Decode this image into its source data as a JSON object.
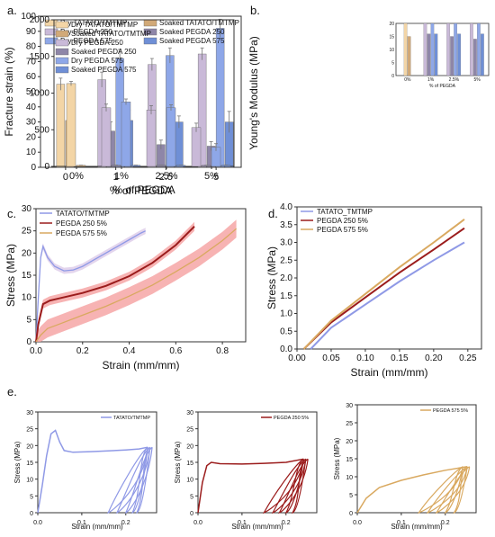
{
  "colors": {
    "dry_tatato": "#f3d5a6",
    "soaked_tatato": "#d1a978",
    "dry_p250": "#c9b9d8",
    "soaked_p250": "#8e86a8",
    "dry_p575": "#8ea7e8",
    "soaked_p575": "#6f8fd6",
    "tatato_line": "#8f99e6",
    "p250_line": "#9b1c1c",
    "p575_line": "#d9a960",
    "band_tatato": "#dccbe9",
    "band_p250": "#f5a0a0",
    "band_p575": "#f5c9a0"
  },
  "chart_data": [
    {
      "id": "a",
      "panel_label": "a.",
      "type": "bar",
      "xlabel": "% of PEGDA",
      "ylabel": "Fracture strain (%)",
      "categories": [
        "0",
        "1",
        "2.5",
        "5"
      ],
      "ylim": [
        0,
        100
      ],
      "yticks": [
        "0",
        "10",
        "20",
        "30",
        "40",
        "50",
        "60",
        "70",
        "80",
        "90",
        "100"
      ],
      "legend_position": "top-right",
      "series": [
        {
          "name": "Dry TATATO/TMTMP",
          "color_key": "dry_tatato",
          "values": [
            55,
            null,
            null,
            null
          ],
          "errors": [
            4,
            null,
            null,
            null
          ]
        },
        {
          "name": "Soaked TATATO/TMTMP",
          "color_key": "soaked_tatato",
          "values": [
            31,
            null,
            null,
            null
          ],
          "errors": [
            4,
            null,
            null,
            null
          ]
        },
        {
          "name": "Dry PEGDA 250",
          "color_key": "dry_p250",
          "values": [
            null,
            58,
            68,
            75
          ],
          "errors": [
            null,
            5,
            4,
            4
          ]
        },
        {
          "name": "Soaked PEGDA 250",
          "color_key": "soaked_p250",
          "values": [
            null,
            24,
            15,
            14
          ],
          "errors": [
            null,
            6,
            3,
            3
          ]
        },
        {
          "name": "Dry PEGDA 575",
          "color_key": "dry_p575",
          "values": [
            null,
            72,
            74,
            92
          ],
          "errors": [
            null,
            6,
            5,
            6
          ]
        },
        {
          "name": "Soaked PEGDA 575",
          "color_key": "soaked_p575",
          "values": [
            null,
            31,
            30,
            30
          ],
          "errors": [
            null,
            7,
            4,
            7
          ]
        }
      ]
    },
    {
      "id": "b",
      "panel_label": "b.",
      "type": "bar",
      "xlabel": "% of PEGDA",
      "ylabel": "Young's Modulus (MPa)",
      "categories": [
        "0%",
        "1%",
        "2.5%",
        "5%"
      ],
      "ylim": [
        0,
        2000
      ],
      "yticks": [
        "0",
        "500",
        "1000",
        "1500",
        "2000"
      ],
      "legend_position": "top-left",
      "series": [
        {
          "name": "Dry TATATO/TMTMP",
          "color_key": "dry_tatato",
          "values": [
            1130,
            null,
            null,
            null
          ],
          "errors": [
            30,
            null,
            null,
            null
          ]
        },
        {
          "name": "Soaked TATATO/TMTMP",
          "color_key": "soaked_tatato",
          "values": [
            15,
            null,
            null,
            null
          ],
          "errors": [
            2,
            null,
            null,
            null
          ]
        },
        {
          "name": "Dry PEGDA 250",
          "color_key": "dry_p250",
          "values": [
            null,
            800,
            770,
            530
          ],
          "errors": [
            null,
            50,
            60,
            60
          ]
        },
        {
          "name": "Soaked PEGDA 250",
          "color_key": "soaked_p250",
          "values": [
            null,
            16,
            15,
            14
          ],
          "errors": [
            null,
            2,
            2,
            2
          ]
        },
        {
          "name": "Dry PEGDA 575",
          "color_key": "dry_p575",
          "values": [
            null,
            880,
            800,
            260
          ],
          "errors": [
            null,
            40,
            40,
            50
          ]
        },
        {
          "name": "Soaked PEGDA 575",
          "color_key": "soaked_p575",
          "values": [
            null,
            16,
            16,
            16
          ],
          "errors": [
            null,
            2,
            2,
            2
          ]
        }
      ],
      "inset": {
        "xlabel": "% of PEGDA",
        "categories": [
          "0%",
          "1%",
          "2.5%",
          "5%"
        ],
        "ylim": [
          0,
          20
        ],
        "yticks": [
          "0",
          "5",
          "10",
          "15",
          "20"
        ]
      }
    },
    {
      "id": "c",
      "panel_label": "c.",
      "type": "line",
      "xlabel": "Strain (mm/mm)",
      "ylabel": "Stress (MPa)",
      "xlim": [
        0,
        0.9
      ],
      "ylim": [
        0,
        30
      ],
      "xticks": [
        "0.0",
        "0.2",
        "0.4",
        "0.6",
        "0.8"
      ],
      "yticks": [
        "0",
        "5",
        "10",
        "15",
        "20",
        "25",
        "30"
      ],
      "legend_position": "top-left",
      "series": [
        {
          "name": "TATATO/TMTMP",
          "color_key": "tatato_line",
          "band_key": "band_tatato",
          "band": 0.7,
          "x": [
            0,
            0.01,
            0.02,
            0.03,
            0.05,
            0.08,
            0.12,
            0.16,
            0.2,
            0.25,
            0.3,
            0.35,
            0.4,
            0.45,
            0.47
          ],
          "y": [
            0,
            10,
            19,
            21.5,
            19,
            17,
            16,
            16.2,
            17,
            18.5,
            20,
            21.5,
            23,
            24.5,
            25
          ]
        },
        {
          "name": "PEGDA 250 5%",
          "color_key": "p250_line",
          "band_key": "band_p250",
          "band": 1.0,
          "x": [
            0,
            0.01,
            0.03,
            0.06,
            0.1,
            0.15,
            0.2,
            0.3,
            0.4,
            0.5,
            0.6,
            0.68
          ],
          "y": [
            0,
            4,
            8.5,
            9.3,
            9.8,
            10.4,
            11,
            12.6,
            14.8,
            17.8,
            21.8,
            26
          ]
        },
        {
          "name": "PEGDA 575 5%",
          "color_key": "p575_line",
          "band_key": "band_p250",
          "band": 2.0,
          "x": [
            0,
            0.02,
            0.05,
            0.1,
            0.2,
            0.3,
            0.4,
            0.5,
            0.6,
            0.7,
            0.8,
            0.86
          ],
          "y": [
            0,
            1.5,
            3,
            4,
            6,
            8,
            10.3,
            12.8,
            15.8,
            19,
            22.8,
            25.5
          ]
        }
      ]
    },
    {
      "id": "d",
      "panel_label": "d.",
      "type": "line",
      "xlabel": "Strain (mm/mm)",
      "ylabel": "Stress (MPa)",
      "xlim": [
        0,
        0.27
      ],
      "ylim": [
        0,
        4.0
      ],
      "xticks": [
        "0.00",
        "0.05",
        "0.10",
        "0.15",
        "0.20",
        "0.25"
      ],
      "yticks": [
        "0.0",
        "0.5",
        "1.0",
        "1.5",
        "2.0",
        "2.5",
        "3.0",
        "3.5",
        "4.0"
      ],
      "legend_position": "top-left",
      "series": [
        {
          "name": "TATATO_TMTMP",
          "color_key": "tatato_line",
          "x": [
            0.02,
            0.05,
            0.1,
            0.15,
            0.2,
            0.245
          ],
          "y": [
            0,
            0.6,
            1.25,
            1.9,
            2.5,
            3.0
          ]
        },
        {
          "name": "PEGDA 250 5%",
          "color_key": "p250_line",
          "x": [
            0.01,
            0.05,
            0.1,
            0.15,
            0.2,
            0.245
          ],
          "y": [
            0,
            0.75,
            1.45,
            2.15,
            2.8,
            3.4
          ]
        },
        {
          "name": "PEGDA 575 5%",
          "color_key": "p575_line",
          "x": [
            0.01,
            0.05,
            0.1,
            0.15,
            0.2,
            0.245
          ],
          "y": [
            0,
            0.8,
            1.55,
            2.3,
            3.0,
            3.65
          ]
        }
      ]
    },
    {
      "id": "e1",
      "panel_label": "e.",
      "type": "line",
      "legend": "TATATO/TMTMP",
      "color_key": "tatato_line",
      "xlabel": "Strain (mm/mm)",
      "ylabel": "Stress (MPa)",
      "xlim": [
        0,
        0.27
      ],
      "ylim": [
        0,
        30
      ],
      "xticks": [
        "0.0",
        "0.1",
        "0.2"
      ],
      "yticks": [
        "0",
        "5",
        "10",
        "15",
        "20",
        "25",
        "30"
      ],
      "loading": {
        "x": [
          0,
          0.01,
          0.02,
          0.03,
          0.04,
          0.05,
          0.06,
          0.08,
          0.12,
          0.16,
          0.2,
          0.23,
          0.25
        ],
        "y": [
          0,
          8,
          17,
          23.5,
          24.5,
          21,
          18.5,
          18,
          18.2,
          18.4,
          18.7,
          19,
          19.5
        ]
      },
      "unload_starts": [
        0.25,
        0.255,
        0.26
      ],
      "unload_ends": [
        0.16,
        0.18,
        0.2,
        0.215,
        0.225
      ]
    },
    {
      "id": "e2",
      "panel_label": "",
      "type": "line",
      "legend": "PEGDA 250 5%",
      "color_key": "p250_line",
      "xlabel": "Strain (mm/mm)",
      "ylabel": "Stress (MPa)",
      "xlim": [
        0,
        0.27
      ],
      "ylim": [
        0,
        30
      ],
      "xticks": [
        "0.0",
        "0.1",
        "0.2"
      ],
      "yticks": [
        "0",
        "5",
        "10",
        "15",
        "20",
        "25",
        "30"
      ],
      "loading": {
        "x": [
          0,
          0.01,
          0.02,
          0.03,
          0.05,
          0.1,
          0.15,
          0.2,
          0.24
        ],
        "y": [
          0,
          9,
          14,
          15,
          14.6,
          14.5,
          14.7,
          15,
          16
        ]
      },
      "unload_starts": [
        0.24,
        0.245,
        0.25
      ],
      "unload_ends": [
        0.15,
        0.17,
        0.185,
        0.2,
        0.215
      ]
    },
    {
      "id": "e3",
      "panel_label": "",
      "type": "line",
      "legend": "PEGDA 575 5%",
      "color_key": "p575_line",
      "xlabel": "Strain (mm/mm)",
      "ylabel": "Stress (MPa)",
      "xlim": [
        0,
        0.27
      ],
      "ylim": [
        0,
        30
      ],
      "xticks": [
        "0.0",
        "0.1",
        "0.2"
      ],
      "yticks": [
        "0",
        "5",
        "10",
        "15",
        "20",
        "25",
        "30"
      ],
      "loading": {
        "x": [
          0,
          0.02,
          0.05,
          0.1,
          0.15,
          0.2,
          0.25
        ],
        "y": [
          0,
          4,
          7,
          9,
          10.5,
          11.8,
          12.8
        ]
      },
      "unload_starts": [
        0.24,
        0.25,
        0.255
      ],
      "unload_ends": [
        0.14,
        0.16,
        0.18,
        0.2,
        0.22
      ]
    }
  ]
}
